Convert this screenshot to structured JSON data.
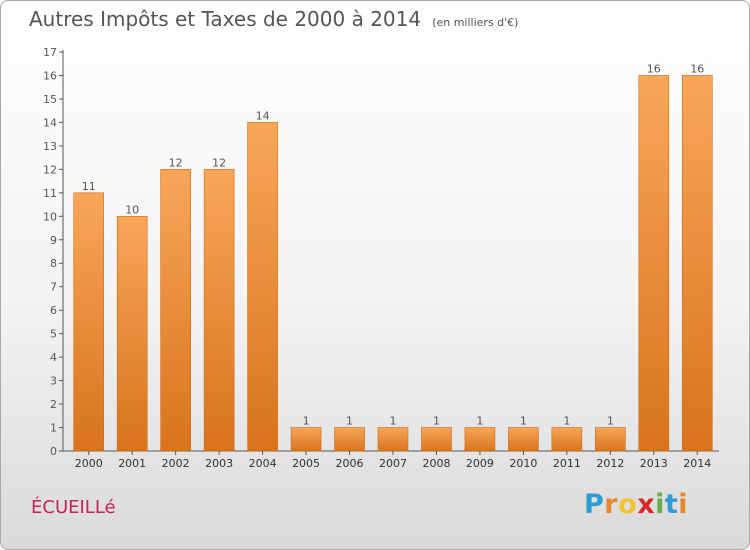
{
  "title": "Autres Impôts et Taxes de 2000 à 2014",
  "subtitle": "(en milliers d'€)",
  "commune": "ÉCUEILLé",
  "logo": {
    "letters": [
      "P",
      "r",
      "o",
      "x",
      "i",
      "t",
      "i"
    ],
    "colors": [
      "#2a9fd6",
      "#e8862a",
      "#f2c230",
      "#d62a2a",
      "#62b046",
      "#2a9fd6",
      "#e8862a"
    ]
  },
  "colors": {
    "bar_light": "#f8a65a",
    "bar_dark": "#d8741c",
    "axis": "#555555",
    "grid": "#cfcfcf"
  },
  "chart_data": {
    "type": "bar",
    "categories": [
      "2000",
      "2001",
      "2002",
      "2003",
      "2004",
      "2005",
      "2006",
      "2007",
      "2008",
      "2009",
      "2010",
      "2011",
      "2012",
      "2013",
      "2014"
    ],
    "values": [
      11,
      10,
      12,
      12,
      14,
      1,
      1,
      1,
      1,
      1,
      1,
      1,
      1,
      16,
      16
    ],
    "data_labels": [
      "11",
      "10",
      "12",
      "12",
      "14",
      "1",
      "1",
      "1",
      "1",
      "1",
      "1",
      "1",
      "1",
      "16",
      "16"
    ],
    "yticks": [
      0,
      1,
      2,
      3,
      4,
      5,
      6,
      7,
      8,
      9,
      10,
      11,
      12,
      13,
      14,
      15,
      16,
      17
    ],
    "ylim": [
      0,
      17
    ],
    "title": "Autres Impôts et Taxes de 2000 à 2014",
    "xlabel": "",
    "ylabel": "",
    "grid": false
  }
}
